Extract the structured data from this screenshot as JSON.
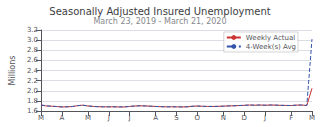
{
  "chart_data": {
    "type": "line",
    "title": "Seasonally Adjusted Insured Unemployment",
    "subtitle": "March 23, 2019 - March 21, 2020",
    "ylabel": "Millions",
    "categories": [
      "M",
      null,
      null,
      null,
      "A",
      null,
      null,
      null,
      null,
      "M",
      null,
      null,
      null,
      "J",
      null,
      null,
      null,
      "J",
      null,
      null,
      null,
      null,
      "A",
      null,
      null,
      null,
      "S",
      null,
      null,
      null,
      "O",
      null,
      null,
      null,
      null,
      "N",
      null,
      null,
      null,
      "D",
      null,
      null,
      null,
      "J",
      null,
      null,
      null,
      null,
      "F",
      null,
      null,
      null,
      "M"
    ],
    "series": [
      {
        "name": "Weekly Actual",
        "color": "#cc3333",
        "line_style": "solid",
        "values": [
          1.72,
          1.7,
          1.695,
          1.688,
          1.68,
          1.683,
          1.688,
          1.705,
          1.715,
          1.7,
          1.69,
          1.685,
          1.683,
          1.682,
          1.683,
          1.68,
          1.681,
          1.69,
          1.698,
          1.703,
          1.7,
          1.695,
          1.69,
          1.685,
          1.683,
          1.683,
          1.683,
          1.68,
          1.683,
          1.693,
          1.698,
          1.693,
          1.69,
          1.69,
          1.692,
          1.696,
          1.7,
          1.703,
          1.708,
          1.712,
          1.718,
          1.714,
          1.718,
          1.714,
          1.718,
          1.716,
          1.712,
          1.71,
          1.708,
          1.716,
          1.718,
          1.708,
          2.05
        ]
      },
      {
        "name": "4-Week(s) Avg",
        "color": "#3355aa",
        "line_style": "dashed",
        "values": [
          1.72,
          1.7,
          1.695,
          1.688,
          1.68,
          1.683,
          1.688,
          1.705,
          1.715,
          1.7,
          1.69,
          1.685,
          1.683,
          1.682,
          1.683,
          1.68,
          1.681,
          1.69,
          1.698,
          1.703,
          1.7,
          1.695,
          1.69,
          1.685,
          1.683,
          1.683,
          1.683,
          1.68,
          1.683,
          1.693,
          1.698,
          1.693,
          1.69,
          1.69,
          1.692,
          1.696,
          1.7,
          1.703,
          1.708,
          1.712,
          1.718,
          1.714,
          1.718,
          1.714,
          1.718,
          1.716,
          1.712,
          1.71,
          1.708,
          1.716,
          1.718,
          1.708,
          3.02
        ]
      }
    ],
    "ylim": [
      1.6,
      3.2
    ],
    "yticks": [
      1.6,
      1.8,
      {
        "value": 2.0,
        "label": "2.0"
      },
      2.2,
      2.4,
      2.6,
      2.8,
      {
        "value": 3.0,
        "label": "3.0"
      },
      3.2
    ],
    "grid": true,
    "legend": "upper right"
  }
}
